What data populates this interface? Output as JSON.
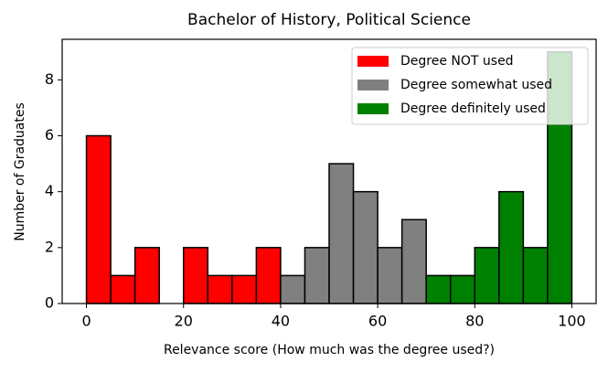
{
  "chart_data": {
    "type": "histogram",
    "title": "Bachelor of History, Political Science",
    "xlabel": "Relevance score (How much was the degree used?)",
    "ylabel": "Number of Graduates",
    "series": [
      {
        "name": "Degree NOT used",
        "color": "#ff0000",
        "bins": [
          0,
          5,
          10,
          15,
          20,
          25,
          30,
          35,
          40
        ],
        "values": [
          6,
          1,
          2,
          0,
          2,
          1,
          1,
          2
        ]
      },
      {
        "name": "Degree somewhat used",
        "color": "#808080",
        "bins": [
          40,
          45,
          50,
          55,
          60,
          65,
          70
        ],
        "values": [
          1,
          2,
          5,
          4,
          2,
          3
        ]
      },
      {
        "name": "Degree definitely used",
        "color": "#008000",
        "bins": [
          70,
          75,
          80,
          85,
          90,
          95,
          100
        ],
        "values": [
          1,
          1,
          2,
          4,
          2,
          9
        ]
      }
    ],
    "xlim": [
      -5,
      105
    ],
    "ylim": [
      0,
      9.45
    ],
    "xticks": [
      0,
      20,
      40,
      60,
      80,
      100
    ],
    "yticks": [
      0,
      2,
      4,
      6,
      8
    ],
    "legend": "upper right"
  }
}
